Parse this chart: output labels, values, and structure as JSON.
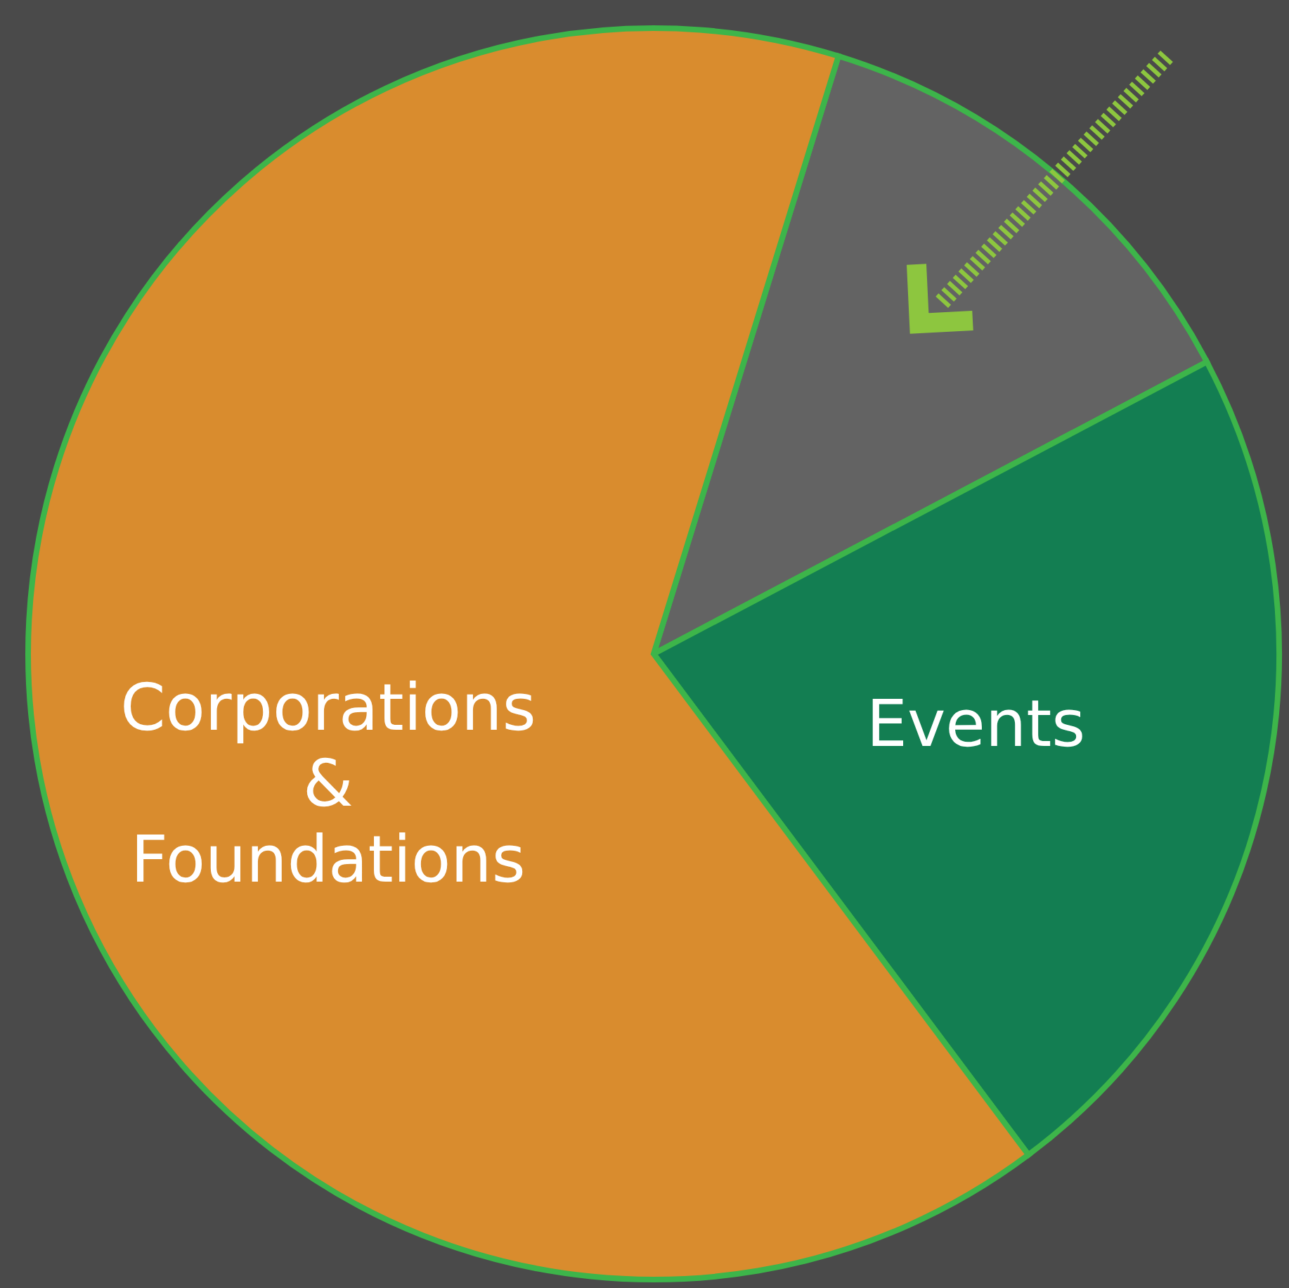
{
  "chart_data": {
    "type": "pie",
    "categories": [
      null,
      "Events",
      "Corporations & Foundations"
    ],
    "values": [
      12.5,
      22.5,
      65
    ],
    "colors": [
      "#636363",
      "#137e52",
      "#d98c2e"
    ]
  }
}
